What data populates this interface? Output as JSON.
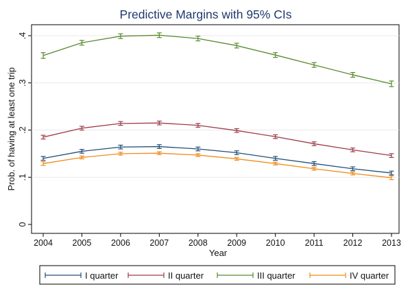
{
  "chart_data": {
    "type": "line",
    "title": "Predictive Margins with 95% CIs",
    "xlabel": "Year",
    "ylabel": "Prob. of having at least one trip",
    "x": [
      2004,
      2005,
      2006,
      2007,
      2008,
      2009,
      2010,
      2011,
      2012,
      2013
    ],
    "x_tick_labels": [
      "2004",
      "2005",
      "2006",
      "2007",
      "2008",
      "2009",
      "2010",
      "2011",
      "2012",
      "2013"
    ],
    "y_ticks": [
      0,
      0.1,
      0.2,
      0.3,
      0.4
    ],
    "y_tick_labels": [
      "0",
      ".1",
      ".2",
      ".3",
      ".4"
    ],
    "ylim": [
      0,
      0.4
    ],
    "grid": "horizontal",
    "legend_position": "bottom",
    "error_bars": "95% CI",
    "series": [
      {
        "name": "I quarter",
        "color": "#1f4e79",
        "values": [
          0.14,
          0.155,
          0.164,
          0.165,
          0.16,
          0.152,
          0.14,
          0.129,
          0.118,
          0.109
        ],
        "ci": [
          0.004,
          0.004,
          0.004,
          0.004,
          0.004,
          0.004,
          0.004,
          0.004,
          0.004,
          0.004
        ]
      },
      {
        "name": "II quarter",
        "color": "#9e3a46",
        "values": [
          0.185,
          0.204,
          0.214,
          0.215,
          0.21,
          0.199,
          0.186,
          0.171,
          0.158,
          0.146
        ],
        "ci": [
          0.004,
          0.004,
          0.004,
          0.004,
          0.004,
          0.004,
          0.004,
          0.004,
          0.004,
          0.004
        ]
      },
      {
        "name": "III quarter",
        "color": "#58892d",
        "values": [
          0.358,
          0.385,
          0.399,
          0.401,
          0.394,
          0.379,
          0.359,
          0.338,
          0.317,
          0.298
        ],
        "ci": [
          0.006,
          0.005,
          0.005,
          0.005,
          0.005,
          0.005,
          0.005,
          0.005,
          0.005,
          0.006
        ]
      },
      {
        "name": "IV quarter",
        "color": "#f08c1a",
        "values": [
          0.129,
          0.142,
          0.15,
          0.151,
          0.147,
          0.139,
          0.129,
          0.118,
          0.108,
          0.099
        ],
        "ci": [
          0.004,
          0.003,
          0.003,
          0.003,
          0.003,
          0.003,
          0.003,
          0.003,
          0.003,
          0.004
        ]
      }
    ]
  }
}
